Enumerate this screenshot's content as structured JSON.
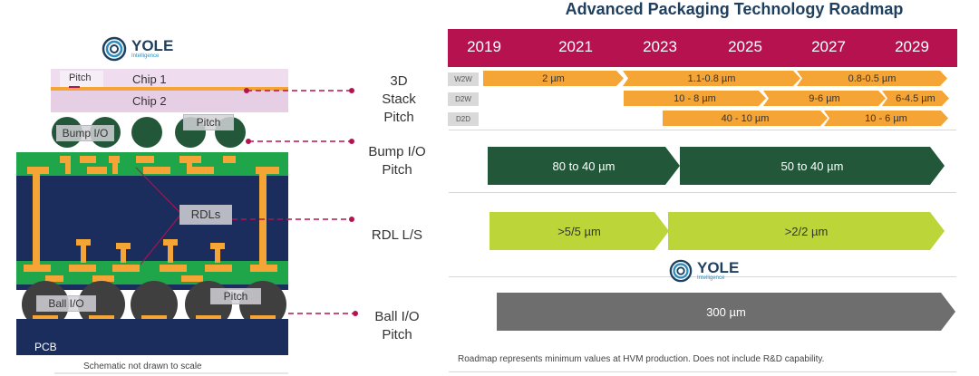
{
  "title": "Advanced Packaging Technology Roadmap",
  "brand": {
    "name": "YOLE",
    "sub": "Intelligence"
  },
  "years": [
    "2019",
    "2021",
    "2023",
    "2025",
    "2027",
    "2029"
  ],
  "rows": {
    "stack": {
      "label_lines": [
        "3D",
        "Stack",
        "Pitch"
      ],
      "subrows": [
        {
          "tag": "W2W",
          "segments": [
            "2 µm",
            "1.1-0.8 µm",
            "0.8-0.5 µm"
          ]
        },
        {
          "tag": "D2W",
          "segments": [
            "10 - 8 µm",
            "9-6 µm",
            "6-4.5 µm"
          ]
        },
        {
          "tag": "D2D",
          "segments": [
            "40 - 10 µm",
            "10 - 6 µm"
          ]
        }
      ]
    },
    "bump": {
      "label_lines": [
        "Bump I/O",
        "Pitch"
      ],
      "segments": [
        "80 to 40 µm",
        "50 to 40 µm"
      ]
    },
    "rdl": {
      "label_lines": [
        "RDL L/S"
      ],
      "segments": [
        ">5/5 µm",
        ">2/2 µm"
      ]
    },
    "ball": {
      "label_lines": [
        "Ball I/O",
        "Pitch"
      ],
      "segments": [
        "300 µm"
      ]
    }
  },
  "colors": {
    "header": "#b5124f",
    "stack": "#f4a535",
    "bump": "#23573a",
    "rdl": "#bcd63a",
    "ball": "#6e6e6e",
    "substrate": "#1b2d5c",
    "green": "#1fa64a",
    "orange": "#f4a535"
  },
  "schematic": {
    "pitch_top": "Pitch",
    "chip1": "Chip 1",
    "chip2": "Chip 2",
    "pitch_bump": "Pitch",
    "bump_io": "Bump I/O",
    "rdls": "RDLs",
    "ball_io": "Ball I/O",
    "pitch_ball": "Pitch",
    "pcb": "PCB",
    "scale_note": "Schematic not drawn to scale"
  },
  "footnote": "Roadmap represents minimum values at HVM production. Does not include R&D capability."
}
